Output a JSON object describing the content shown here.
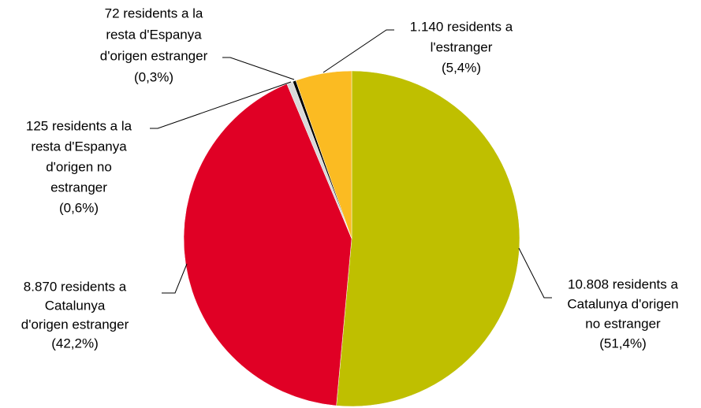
{
  "chart_data": {
    "type": "pie",
    "labels": [
      [
        "10.808 residents a",
        "Catalunya d'origen",
        "no estranger"
      ],
      [
        "8.870 residents a",
        "Catalunya",
        "d'origen estranger"
      ],
      [
        "125 residents a la",
        "resta d'Espanya",
        "d'origen no",
        "estranger"
      ],
      [
        "72 residents a la",
        "resta d'Espanya",
        "d'origen estranger"
      ],
      [
        "1.140 residents a",
        "l'estranger"
      ]
    ],
    "values": [
      51.4,
      42.2,
      0.6,
      0.3,
      5.4
    ],
    "value_labels": [
      "(51,4%)",
      "(42,2%)",
      "(0,6%)",
      "(0,3%)",
      "(5,4%)"
    ],
    "colors": [
      "#bfbf00",
      "#e00025",
      "#d9d9d9",
      "#000000",
      "#fbbb22"
    ]
  }
}
